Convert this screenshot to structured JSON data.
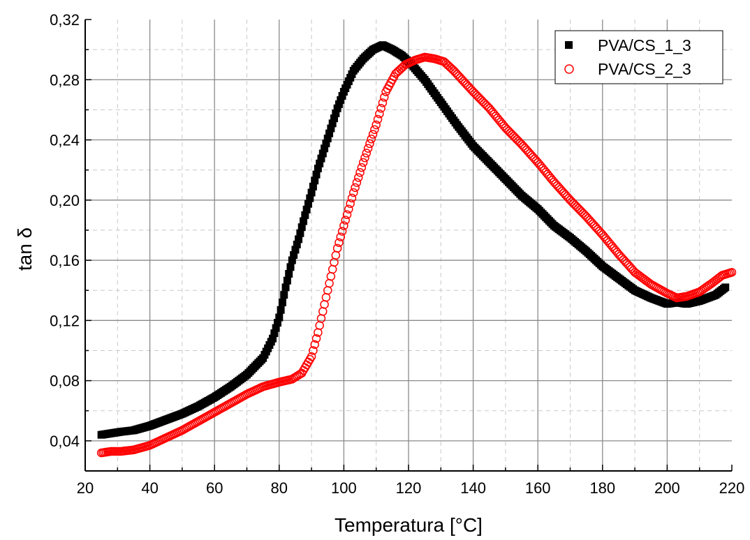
{
  "chart_data": {
    "type": "scatter",
    "title": "",
    "xlabel": "Temperatura [°C]",
    "ylabel": "tan δ",
    "xlim": [
      20,
      220
    ],
    "ylim": [
      0.02,
      0.32
    ],
    "xticks": [
      20,
      40,
      60,
      80,
      100,
      120,
      140,
      160,
      180,
      200,
      220
    ],
    "xtick_labels": [
      "20",
      "40",
      "60",
      "80",
      "100",
      "120",
      "140",
      "160",
      "180",
      "200",
      "220"
    ],
    "yticks": [
      0.04,
      0.08,
      0.12,
      0.16,
      0.2,
      0.24,
      0.28,
      0.32
    ],
    "ytick_labels": [
      "0,04",
      "0,08",
      "0,12",
      "0,16",
      "0,20",
      "0,24",
      "0,28",
      "0,32"
    ],
    "grid": true,
    "legend_position": "top-right",
    "series": [
      {
        "name": "PVA/CS_1_3",
        "marker": "filled-square",
        "color": "#000000",
        "points": [
          [
            25,
            0.044
          ],
          [
            28,
            0.045
          ],
          [
            31,
            0.046
          ],
          [
            35,
            0.047
          ],
          [
            40,
            0.05
          ],
          [
            45,
            0.054
          ],
          [
            50,
            0.058
          ],
          [
            55,
            0.063
          ],
          [
            60,
            0.069
          ],
          [
            65,
            0.076
          ],
          [
            70,
            0.084
          ],
          [
            75,
            0.095
          ],
          [
            78,
            0.108
          ],
          [
            80,
            0.122
          ],
          [
            82,
            0.142
          ],
          [
            84,
            0.16
          ],
          [
            86,
            0.174
          ],
          [
            88,
            0.19
          ],
          [
            90,
            0.205
          ],
          [
            92,
            0.221
          ],
          [
            95,
            0.241
          ],
          [
            98,
            0.261
          ],
          [
            100,
            0.272
          ],
          [
            103,
            0.286
          ],
          [
            106,
            0.294
          ],
          [
            109,
            0.3
          ],
          [
            112,
            0.303
          ],
          [
            115,
            0.3
          ],
          [
            118,
            0.296
          ],
          [
            121,
            0.29
          ],
          [
            125,
            0.28
          ],
          [
            130,
            0.265
          ],
          [
            135,
            0.25
          ],
          [
            140,
            0.236
          ],
          [
            145,
            0.225
          ],
          [
            150,
            0.214
          ],
          [
            155,
            0.203
          ],
          [
            160,
            0.194
          ],
          [
            165,
            0.183
          ],
          [
            170,
            0.175
          ],
          [
            175,
            0.166
          ],
          [
            180,
            0.156
          ],
          [
            185,
            0.148
          ],
          [
            190,
            0.14
          ],
          [
            195,
            0.135
          ],
          [
            200,
            0.131
          ],
          [
            203,
            0.132
          ],
          [
            206,
            0.131
          ],
          [
            210,
            0.133
          ],
          [
            215,
            0.137
          ],
          [
            218,
            0.142
          ]
        ]
      },
      {
        "name": "PVA/CS_2_3",
        "marker": "open-circle",
        "color": "#ff0000",
        "points": [
          [
            25,
            0.032
          ],
          [
            28,
            0.033
          ],
          [
            31,
            0.033
          ],
          [
            35,
            0.034
          ],
          [
            40,
            0.037
          ],
          [
            45,
            0.042
          ],
          [
            50,
            0.047
          ],
          [
            55,
            0.053
          ],
          [
            60,
            0.059
          ],
          [
            65,
            0.065
          ],
          [
            70,
            0.071
          ],
          [
            75,
            0.076
          ],
          [
            80,
            0.079
          ],
          [
            84,
            0.081
          ],
          [
            87,
            0.085
          ],
          [
            90,
            0.096
          ],
          [
            92,
            0.112
          ],
          [
            95,
            0.14
          ],
          [
            98,
            0.168
          ],
          [
            100,
            0.183
          ],
          [
            103,
            0.205
          ],
          [
            106,
            0.225
          ],
          [
            110,
            0.25
          ],
          [
            113,
            0.272
          ],
          [
            116,
            0.284
          ],
          [
            119,
            0.29
          ],
          [
            122,
            0.293
          ],
          [
            125,
            0.295
          ],
          [
            128,
            0.294
          ],
          [
            131,
            0.292
          ],
          [
            134,
            0.286
          ],
          [
            137,
            0.279
          ],
          [
            140,
            0.272
          ],
          [
            145,
            0.261
          ],
          [
            150,
            0.248
          ],
          [
            155,
            0.237
          ],
          [
            160,
            0.225
          ],
          [
            165,
            0.212
          ],
          [
            170,
            0.2
          ],
          [
            175,
            0.189
          ],
          [
            180,
            0.177
          ],
          [
            185,
            0.164
          ],
          [
            190,
            0.152
          ],
          [
            195,
            0.144
          ],
          [
            200,
            0.138
          ],
          [
            203,
            0.135
          ],
          [
            206,
            0.136
          ],
          [
            210,
            0.139
          ],
          [
            214,
            0.145
          ],
          [
            217,
            0.15
          ],
          [
            220,
            0.152
          ]
        ]
      }
    ]
  }
}
